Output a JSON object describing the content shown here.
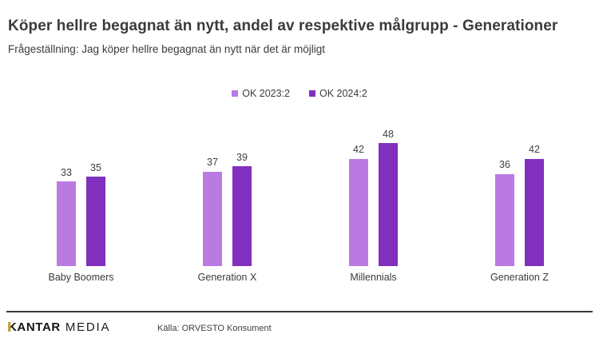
{
  "header": {
    "title": "Köper hellre begagnat än nytt, andel av respektive målgrupp - Generationer",
    "subtitle": "Frågeställning: Jag köper hellre begagnat än nytt när det är möjligt"
  },
  "colors": {
    "series_2023": "#b97be2",
    "series_2024": "#8030bc",
    "text": "#3b3b3b",
    "divider": "#3a3a3a",
    "logo_accent": "#cfa433"
  },
  "chart_data": {
    "type": "bar",
    "title": "Köper hellre begagnat än nytt, andel av respektive målgrupp - Generationer",
    "subtitle": "Frågeställning: Jag köper hellre begagnat än nytt när det är möjligt",
    "categories": [
      "Baby Boomers",
      "Generation X",
      "Millennials",
      "Generation Z"
    ],
    "series": [
      {
        "name": "OK 2023:2",
        "values": [
          33,
          37,
          42,
          36
        ]
      },
      {
        "name": "OK 2024:2",
        "values": [
          35,
          39,
          48,
          42
        ]
      }
    ],
    "unit": "percent share of target group",
    "ylim": [
      0,
      50
    ],
    "grid": false,
    "value_labels": true,
    "legend_position": "top-center",
    "xlabel": "",
    "ylabel": ""
  },
  "footer": {
    "logo_primary": "KANTAR",
    "logo_secondary": "MEDIA",
    "source": "Källa: ORVESTO Konsument"
  }
}
